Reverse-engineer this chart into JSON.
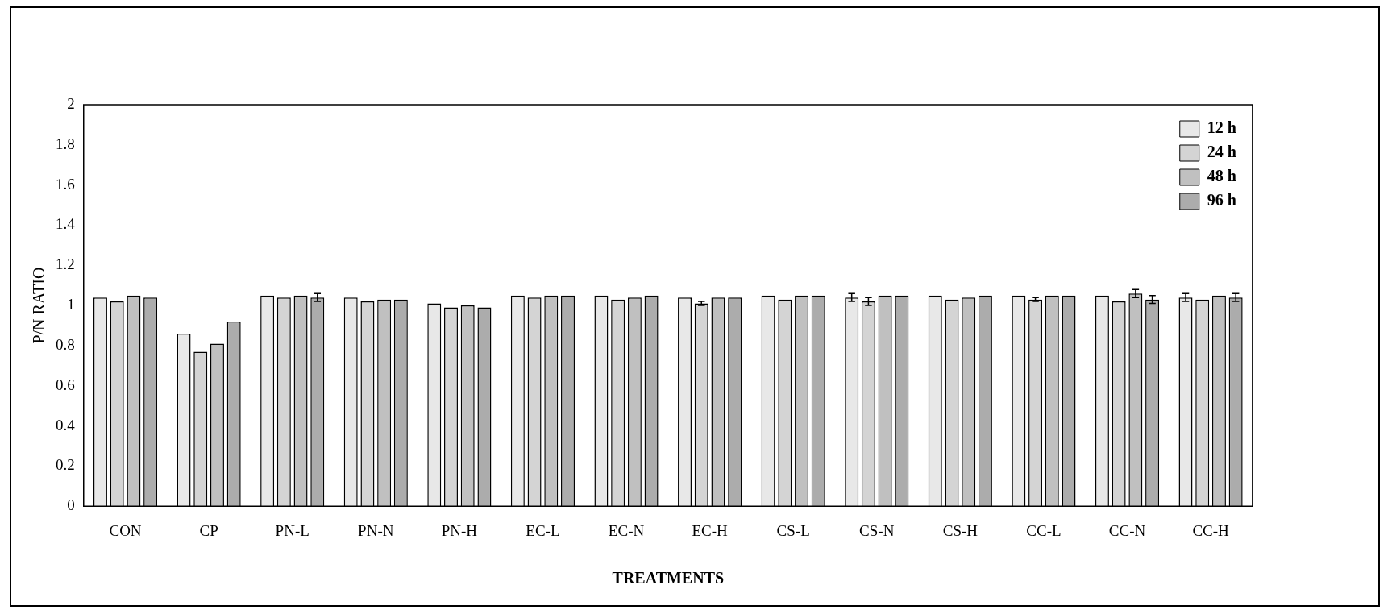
{
  "chart_data": {
    "type": "bar",
    "xlabel": "TREATMENTS",
    "ylabel": "P/N RATIO",
    "categories": [
      "CON",
      "CP",
      "PN-L",
      "PN-N",
      "PN-H",
      "EC-L",
      "EC-N",
      "EC-H",
      "CS-L",
      "CS-N",
      "CS-H",
      "CC-L",
      "CC-N",
      "CC-H"
    ],
    "series": [
      {
        "name": "12 h",
        "color": "#e8e8e8",
        "values": [
          1.04,
          0.86,
          1.05,
          1.04,
          1.01,
          1.05,
          1.05,
          1.04,
          1.05,
          1.04,
          1.05,
          1.05,
          1.05,
          1.04
        ],
        "errors": [
          null,
          null,
          null,
          null,
          null,
          null,
          null,
          null,
          null,
          0.02,
          null,
          null,
          null,
          0.02
        ]
      },
      {
        "name": "24 h",
        "color": "#d4d4d4",
        "values": [
          1.02,
          0.77,
          1.04,
          1.02,
          0.99,
          1.04,
          1.03,
          1.01,
          1.03,
          1.02,
          1.03,
          1.03,
          1.02,
          1.03
        ],
        "errors": [
          null,
          null,
          null,
          null,
          null,
          null,
          null,
          0.01,
          null,
          0.02,
          null,
          0.01,
          null,
          null
        ]
      },
      {
        "name": "48 h",
        "color": "#c0c0c0",
        "values": [
          1.05,
          0.81,
          1.05,
          1.03,
          1.0,
          1.05,
          1.04,
          1.04,
          1.05,
          1.05,
          1.04,
          1.05,
          1.06,
          1.05
        ],
        "errors": [
          null,
          null,
          null,
          null,
          null,
          null,
          null,
          null,
          null,
          null,
          null,
          null,
          0.02,
          null
        ]
      },
      {
        "name": "96 h",
        "color": "#acacac",
        "values": [
          1.04,
          0.92,
          1.04,
          1.03,
          0.99,
          1.05,
          1.05,
          1.04,
          1.05,
          1.05,
          1.05,
          1.05,
          1.03,
          1.04
        ],
        "errors": [
          null,
          null,
          0.02,
          null,
          null,
          null,
          null,
          null,
          null,
          null,
          null,
          null,
          0.02,
          0.02
        ]
      }
    ],
    "ylim": [
      0,
      2
    ],
    "yticks": [
      0,
      0.2,
      0.4,
      0.6,
      0.8,
      1,
      1.2,
      1.4,
      1.6,
      1.8,
      2
    ],
    "grid": false,
    "legend": "top right"
  }
}
